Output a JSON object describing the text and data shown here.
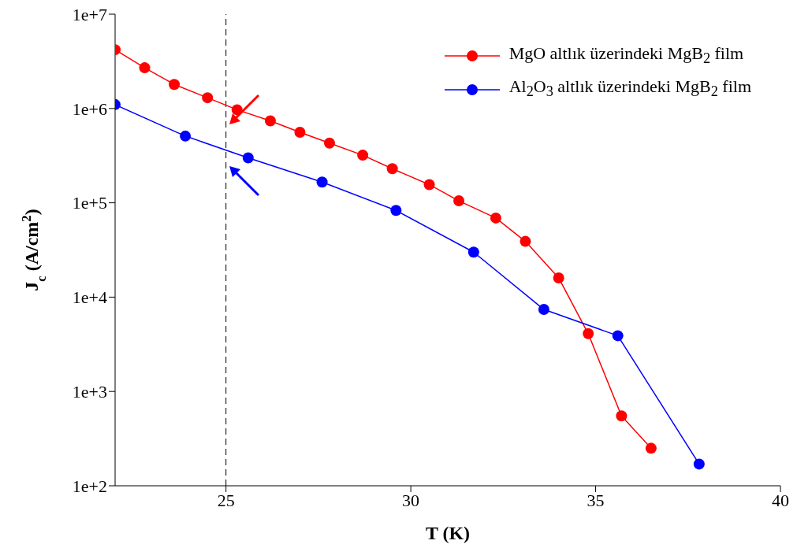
{
  "chart_data": {
    "type": "line",
    "xlabel": "T (K)",
    "ylabel": "J$_{c}$ (A/cm$^{2}$)",
    "log": "y",
    "xlim": [
      22,
      40
    ],
    "xticks": [
      25,
      30,
      35,
      40
    ],
    "ylim": [
      100,
      10000000
    ],
    "yticks": [
      {
        "value": 100,
        "label": "1e+2"
      },
      {
        "value": 1000,
        "label": "1e+3"
      },
      {
        "value": 10000,
        "label": "1e+4"
      },
      {
        "value": 100000,
        "label": "1e+5"
      },
      {
        "value": 1000000,
        "label": "1e+6"
      },
      {
        "value": 10000000,
        "label": "1e+7"
      }
    ],
    "grid": false,
    "legend": "top right",
    "marker": "circle",
    "line_style": "solid",
    "ref_lines": [
      {
        "axis": "x",
        "value": 25,
        "color": "#000000",
        "line_style": "dashed"
      }
    ],
    "series": [
      {
        "name": "MgO altlık üzerindeki MgB$_{2}$ film",
        "color": "#ff0000",
        "x": [
          22,
          22.8,
          23.6,
          24.5,
          25.3,
          26.2,
          27,
          27.8,
          28.7,
          29.5,
          30.5,
          31.3,
          32.3,
          33.1,
          34,
          34.8,
          35.7,
          36.5
        ],
        "values": [
          4200000,
          2700000,
          1800000,
          1300000,
          970000,
          740000,
          560000,
          430000,
          320000,
          230000,
          156000,
          105000,
          69000,
          39000,
          16000,
          4100,
          550,
          250
        ]
      },
      {
        "name": "Al$_{2}$O$_{3}$ altlık üzerindeki MgB$_{2}$ film",
        "color": "#0000ff",
        "x": [
          22,
          23.9,
          25.6,
          27.6,
          29.6,
          31.7,
          33.6,
          35.6,
          37.8
        ],
        "values": [
          1100000,
          510000,
          300000,
          166000,
          83000,
          30000,
          7400,
          3900,
          170
        ]
      }
    ]
  }
}
